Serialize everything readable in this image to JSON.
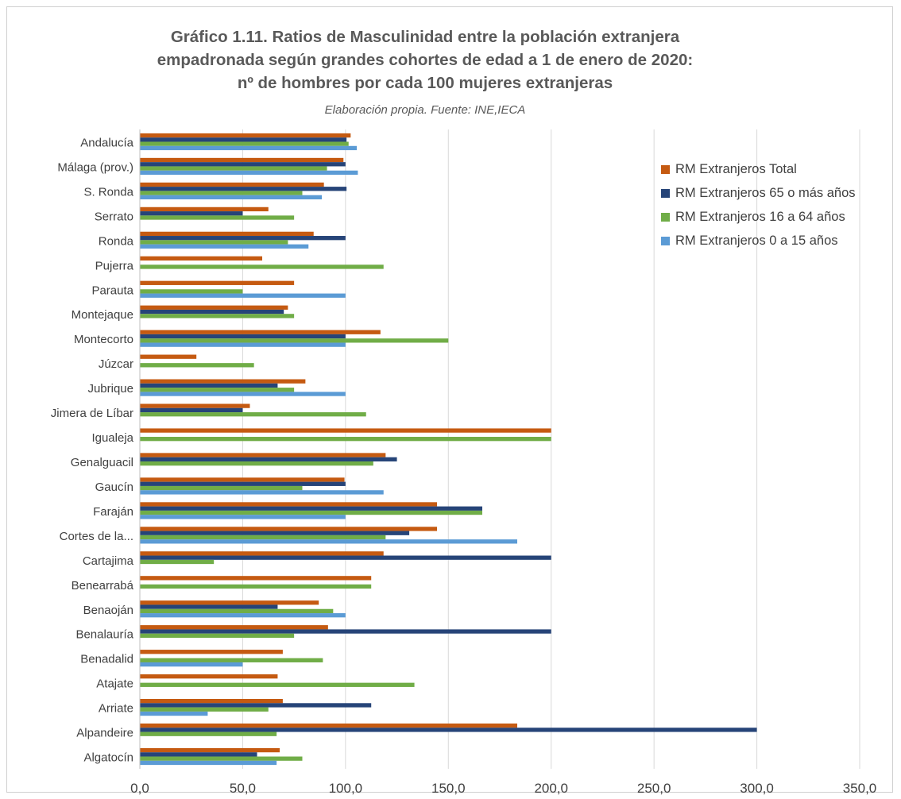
{
  "chart_data": {
    "type": "bar",
    "orientation": "horizontal",
    "title_lines": [
      "Gráfico 1.11. Ratios de Masculinidad entre la población extranjera",
      "empadronada según grandes cohortes de edad a 1 de enero de 2020:",
      "nº de hombres por cada 100 mujeres extranjeras"
    ],
    "subtitle": "Elaboración propia. Fuente: INE,IECA",
    "categories": [
      "Andalucía",
      "Málaga (prov.)",
      "S. Ronda",
      "Serrato",
      "Ronda",
      "Pujerra",
      "Parauta",
      "Montejaque",
      "Montecorto",
      "Júzcar",
      "Jubrique",
      "Jimera de Líbar",
      "Igualeja",
      "Genalguacil",
      "Gaucín",
      "Faraján",
      "Cortes de la...",
      "Cartajima",
      "Benearrabá",
      "Benaoján",
      "Benalauría",
      "Benadalid",
      "Atajate",
      "Arriate",
      "Alpandeire",
      "Algatocín"
    ],
    "series": [
      {
        "name": "RM Extranjeros Total",
        "color": "#c55a11",
        "values": [
          102.5,
          99.0,
          89.5,
          62.5,
          84.5,
          59.5,
          75.0,
          72.0,
          117.0,
          27.5,
          80.5,
          53.5,
          200.0,
          119.5,
          99.5,
          144.5,
          144.5,
          118.5,
          112.5,
          87.0,
          91.5,
          69.5,
          67.0,
          69.5,
          183.5,
          68.0
        ]
      },
      {
        "name": "RM Extranjeros 65 o más años",
        "color": "#264478",
        "values": [
          100.5,
          100.0,
          100.5,
          50.0,
          100.0,
          null,
          null,
          70.0,
          100.0,
          null,
          67.0,
          50.0,
          null,
          125.0,
          100.0,
          166.5,
          131.0,
          200.0,
          null,
          67.0,
          200.0,
          null,
          null,
          112.5,
          300.0,
          57.0
        ]
      },
      {
        "name": "RM Extranjeros 16 a 64 años",
        "color": "#70ad47",
        "values": [
          101.5,
          91.0,
          79.0,
          75.0,
          72.0,
          118.5,
          50.0,
          75.0,
          150.0,
          55.5,
          75.0,
          110.0,
          200.0,
          113.5,
          79.0,
          166.5,
          119.5,
          36.0,
          112.5,
          94.0,
          75.0,
          89.0,
          133.5,
          62.5,
          66.5,
          79.0
        ]
      },
      {
        "name": "RM Extranjeros 0 a 15 años",
        "color": "#5b9bd5",
        "values": [
          105.5,
          106.0,
          88.5,
          null,
          82.0,
          null,
          100.0,
          null,
          100.0,
          null,
          100.0,
          null,
          null,
          null,
          118.5,
          100.0,
          183.5,
          null,
          null,
          100.0,
          null,
          50.0,
          null,
          33.0,
          null,
          66.5
        ]
      }
    ],
    "xlim": [
      0,
      350
    ],
    "x_ticks": [
      "0,0",
      "50,0",
      "100,0",
      "150,0",
      "200,0",
      "250,0",
      "300,0",
      "350,0"
    ],
    "x_tick_values": [
      0,
      50,
      100,
      150,
      200,
      250,
      300,
      350
    ],
    "legend_position": "top-right",
    "legend_order": [
      0,
      1,
      2,
      3
    ],
    "grid": "vertical major gridlines"
  }
}
